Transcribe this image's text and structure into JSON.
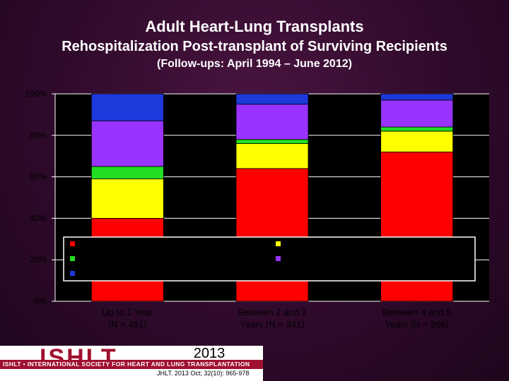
{
  "slide": {
    "title": "Adult Heart-Lung Transplants",
    "subtitle": "Rehospitalization Post-transplant of Surviving Recipients",
    "subtitle2": "(Follow-ups: April 1994 – June 2012)"
  },
  "footer": {
    "logo_text": "ISHLT",
    "tagline": "ISHLT • INTERNATIONAL SOCIETY FOR HEART AND LUNG TRANSPLANTATION",
    "year": "2013",
    "citation": "JHLT. 2013 Oct; 32(10): 965-978"
  },
  "colors": {
    "plot_bg": "#000000",
    "axis_label": "#000000",
    "red": "#ff0000",
    "yellow": "#ffff00",
    "green": "#22dd22",
    "purple": "#9933ff",
    "blue": "#1e3adc"
  },
  "chart_data": {
    "type": "bar",
    "stacked": true,
    "categories": [
      "Up to 1 Year\n(N = 491)",
      "Between 2 and 3\nYears (N = 341)",
      "Between 4 and 5\nYears (N = 266)"
    ],
    "series": [
      {
        "color": "#ff0000",
        "values": [
          40,
          64,
          72
        ]
      },
      {
        "color": "#ffff00",
        "values": [
          19,
          12,
          10
        ]
      },
      {
        "color": "#22dd22",
        "values": [
          6,
          2,
          2
        ]
      },
      {
        "color": "#9933ff",
        "values": [
          22,
          17,
          13
        ]
      },
      {
        "color": "#1e3adc",
        "values": [
          13,
          5,
          3
        ]
      }
    ],
    "yticks": [
      "0%",
      "20%",
      "40%",
      "60%",
      "80%",
      "100%"
    ],
    "ylim": [
      0,
      100
    ],
    "grid": true,
    "legend_position": "inside-bottom"
  }
}
